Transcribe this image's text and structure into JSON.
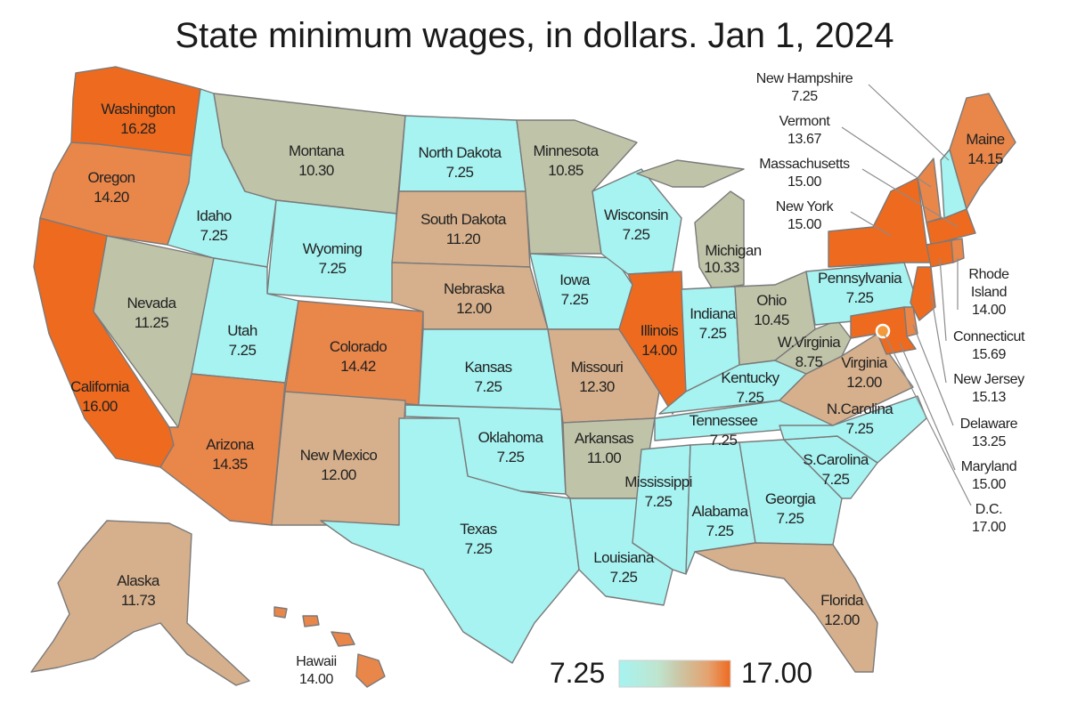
{
  "title": "State minimum wages, in dollars. Jan 1, 2024",
  "colors": {
    "low": "#a6f3f1",
    "mid": "#bfc3a8",
    "midwarm": "#d6b08c",
    "high": "#e9864a",
    "max": "#ee6a1f",
    "dc_marker": "#f39a3c"
  },
  "legend": {
    "min": "7.25",
    "max": "17.00"
  },
  "states": {
    "washington": {
      "name": "Washington",
      "wage": "16.28"
    },
    "oregon": {
      "name": "Oregon",
      "wage": "14.20"
    },
    "california": {
      "name": "California",
      "wage": "16.00"
    },
    "nevada": {
      "name": "Nevada",
      "wage": "11.25"
    },
    "idaho": {
      "name": "Idaho",
      "wage": "7.25"
    },
    "montana": {
      "name": "Montana",
      "wage": "10.30"
    },
    "wyoming": {
      "name": "Wyoming",
      "wage": "7.25"
    },
    "utah": {
      "name": "Utah",
      "wage": "7.25"
    },
    "arizona": {
      "name": "Arizona",
      "wage": "14.35"
    },
    "colorado": {
      "name": "Colorado",
      "wage": "14.42"
    },
    "new_mexico": {
      "name": "New Mexico",
      "wage": "12.00"
    },
    "north_dakota": {
      "name": "North Dakota",
      "wage": "7.25"
    },
    "south_dakota": {
      "name": "South Dakota",
      "wage": "11.20"
    },
    "nebraska": {
      "name": "Nebraska",
      "wage": "12.00"
    },
    "kansas": {
      "name": "Kansas",
      "wage": "7.25"
    },
    "oklahoma": {
      "name": "Oklahoma",
      "wage": "7.25"
    },
    "texas": {
      "name": "Texas",
      "wage": "7.25"
    },
    "minnesota": {
      "name": "Minnesota",
      "wage": "10.85"
    },
    "iowa": {
      "name": "Iowa",
      "wage": "7.25"
    },
    "missouri": {
      "name": "Missouri",
      "wage": "12.30"
    },
    "arkansas": {
      "name": "Arkansas",
      "wage": "11.00"
    },
    "louisiana": {
      "name": "Louisiana",
      "wage": "7.25"
    },
    "wisconsin": {
      "name": "Wisconsin",
      "wage": "7.25"
    },
    "illinois": {
      "name": "Illinois",
      "wage": "14.00"
    },
    "michigan": {
      "name": "Michigan",
      "wage": "10.33"
    },
    "indiana": {
      "name": "Indiana",
      "wage": "7.25"
    },
    "ohio": {
      "name": "Ohio",
      "wage": "10.45"
    },
    "kentucky": {
      "name": "Kentucky",
      "wage": "7.25"
    },
    "tennessee": {
      "name": "Tennessee",
      "wage": "7.25"
    },
    "mississippi": {
      "name": "Mississippi",
      "wage": "7.25"
    },
    "alabama": {
      "name": "Alabama",
      "wage": "7.25"
    },
    "georgia": {
      "name": "Georgia",
      "wage": "7.25"
    },
    "florida": {
      "name": "Florida",
      "wage": "12.00"
    },
    "south_carolina": {
      "name": "S.Carolina",
      "wage": "7.25"
    },
    "north_carolina": {
      "name": "N.Carolina",
      "wage": "7.25"
    },
    "virginia": {
      "name": "Virginia",
      "wage": "12.00"
    },
    "west_virginia": {
      "name": "W.Virginia",
      "wage": "8.75"
    },
    "pennsylvania": {
      "name": "Pennsylvania",
      "wage": "7.25"
    },
    "new_york": {
      "name": "New York",
      "wage": "15.00"
    },
    "vermont": {
      "name": "Vermont",
      "wage": "13.67"
    },
    "new_hampshire": {
      "name": "New Hampshire",
      "wage": "7.25"
    },
    "maine": {
      "name": "Maine",
      "wage": "14.15"
    },
    "massachusetts": {
      "name": "Massachusetts",
      "wage": "15.00"
    },
    "rhode_island": {
      "name_line1": "Rhode",
      "name_line2": "Island",
      "wage": "14.00"
    },
    "connecticut": {
      "name": "Connecticut",
      "wage": "15.69"
    },
    "new_jersey": {
      "name": "New Jersey",
      "wage": "15.13"
    },
    "delaware": {
      "name": "Delaware",
      "wage": "13.25"
    },
    "maryland": {
      "name": "Maryland",
      "wage": "15.00"
    },
    "dc": {
      "name": "D.C.",
      "wage": "17.00"
    },
    "alaska": {
      "name": "Alaska",
      "wage": "11.73"
    },
    "hawaii": {
      "name": "Hawaii",
      "wage": "14.00"
    }
  }
}
